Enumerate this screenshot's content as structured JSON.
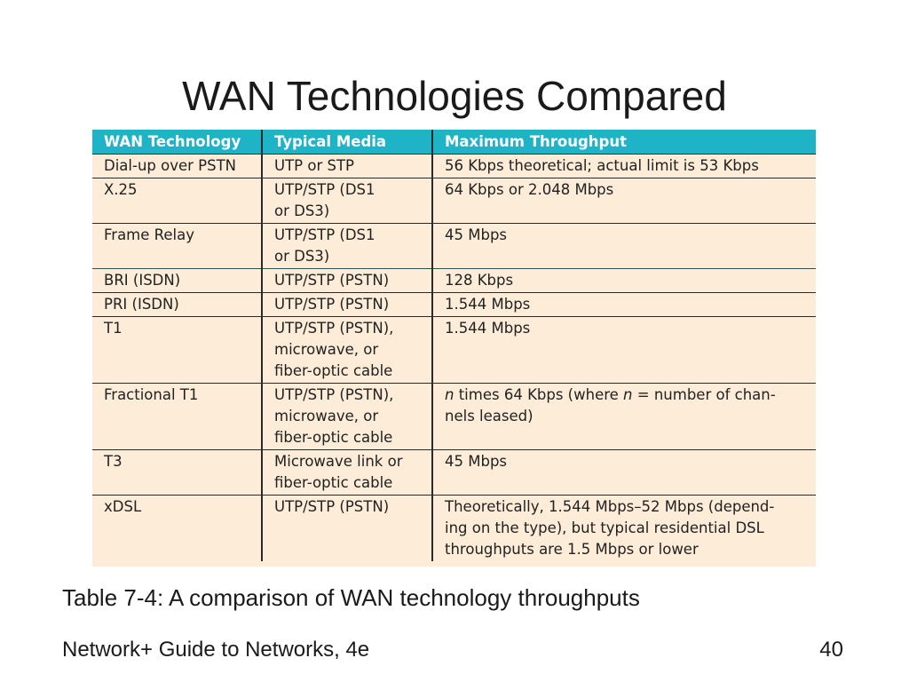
{
  "slide": {
    "title": "WAN Technologies Compared",
    "caption": "Table 7-4: A comparison of WAN technology throughputs",
    "footer": "Network+ Guide to Networks, 4e",
    "page_number": "40"
  },
  "colors": {
    "header_bg": "#1fb3c8",
    "table_bg": "#fcecd8",
    "rule": "#2a2a2a"
  },
  "table": {
    "headers": [
      "WAN Technology",
      "Typical Media",
      "Maximum Throughput"
    ],
    "rows": [
      {
        "tech": "Dial-up over PSTN",
        "media": "UTP or STP",
        "throughput": "56 Kbps theoretical; actual limit is 53 Kbps"
      },
      {
        "tech": "X.25",
        "media": "UTP/STP (DS1\nor DS3)",
        "throughput": "64 Kbps or 2.048 Mbps"
      },
      {
        "tech": "Frame Relay",
        "media": "UTP/STP (DS1\nor DS3)",
        "throughput": "45 Mbps"
      },
      {
        "tech": "BRI (ISDN)",
        "media": "UTP/STP (PSTN)",
        "throughput": "128 Kbps"
      },
      {
        "tech": "PRI (ISDN)",
        "media": "UTP/STP (PSTN)",
        "throughput": "1.544 Mbps"
      },
      {
        "tech": "T1",
        "media": "UTP/STP (PSTN),\nmicrowave, or\nfiber-optic cable",
        "throughput": "1.544 Mbps"
      },
      {
        "tech": "Fractional T1",
        "media": "UTP/STP (PSTN),\nmicrowave, or\nfiber-optic cable",
        "throughput_parts": [
          "n",
          " times 64 Kbps (where ",
          "n",
          " = number of chan-\nnels leased)"
        ]
      },
      {
        "tech": "T3",
        "media": "Microwave link or\nfiber-optic cable",
        "throughput": "45 Mbps"
      },
      {
        "tech": "xDSL",
        "media": "UTP/STP (PSTN)",
        "throughput": "Theoretically, 1.544 Mbps–52 Mbps (depend-\ning on the type), but typical residential DSL\nthroughputs are 1.5 Mbps or lower"
      }
    ]
  }
}
